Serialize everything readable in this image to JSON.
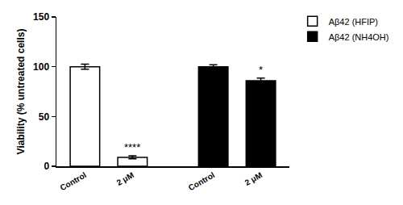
{
  "chart_data": {
    "type": "bar",
    "y_label": "Viability (% untreated cells)",
    "categories": [
      "Control",
      "2 μM",
      "Control",
      "2 μM"
    ],
    "series": [
      {
        "name": "Aβ42 (HFIP)",
        "color": "#ffffff",
        "values": [
          100,
          9,
          null,
          null
        ],
        "errors": [
          2.5,
          1.5,
          null,
          null
        ]
      },
      {
        "name": "Aβ42 (NH4OH)",
        "color": "#000000",
        "values": [
          null,
          null,
          100,
          86
        ],
        "errors": [
          null,
          null,
          2,
          2.5
        ]
      }
    ],
    "annotations": [
      {
        "text": "****",
        "x": 1
      },
      {
        "text": "*",
        "x": 3
      }
    ],
    "ylim": [
      0,
      150
    ],
    "yticks": [
      0,
      50,
      100,
      150
    ],
    "grid": false,
    "legend": "right"
  }
}
